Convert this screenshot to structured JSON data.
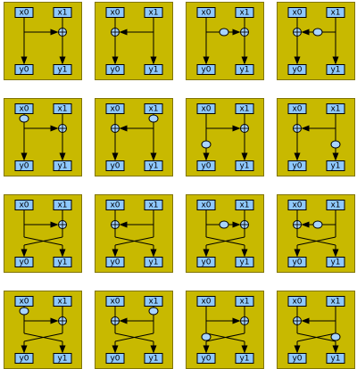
{
  "colors": {
    "cell_bg": "#c8b900",
    "cell_border": "#807400",
    "box_fill": "#8ec8ff",
    "node_fill": "#a8d4ff",
    "stroke": "#000000"
  },
  "labels": {
    "input_left": "x0",
    "input_right": "x1",
    "output_left": "y0",
    "output_right": "y1"
  },
  "grid": {
    "rows": [
      {
        "crossed_outputs": false,
        "cells": [
          {
            "arrow": "right",
            "multipliers": []
          },
          {
            "arrow": "left",
            "multipliers": []
          },
          {
            "arrow": "right",
            "multipliers": [
              "on-arrow"
            ]
          },
          {
            "arrow": "left",
            "multipliers": [
              "on-arrow"
            ]
          }
        ]
      },
      {
        "crossed_outputs": false,
        "cells": [
          {
            "arrow": "right",
            "multipliers": [
              "left-rail-top"
            ]
          },
          {
            "arrow": "left",
            "multipliers": [
              "right-rail-top"
            ]
          },
          {
            "arrow": "right",
            "multipliers": [
              "left-rail-bottom"
            ]
          },
          {
            "arrow": "left",
            "multipliers": [
              "right-rail-bottom"
            ]
          }
        ]
      },
      {
        "crossed_outputs": true,
        "cells": [
          {
            "arrow": "right",
            "multipliers": []
          },
          {
            "arrow": "left",
            "multipliers": []
          },
          {
            "arrow": "right",
            "multipliers": [
              "on-arrow"
            ]
          },
          {
            "arrow": "left",
            "multipliers": [
              "on-arrow"
            ]
          }
        ]
      },
      {
        "crossed_outputs": true,
        "cells": [
          {
            "arrow": "right",
            "multipliers": [
              "left-rail-top"
            ]
          },
          {
            "arrow": "left",
            "multipliers": [
              "right-rail-top"
            ]
          },
          {
            "arrow": "right",
            "multipliers": [
              "left-rail-bottom"
            ]
          },
          {
            "arrow": "left",
            "multipliers": [
              "right-rail-bottom"
            ]
          }
        ]
      }
    ]
  }
}
